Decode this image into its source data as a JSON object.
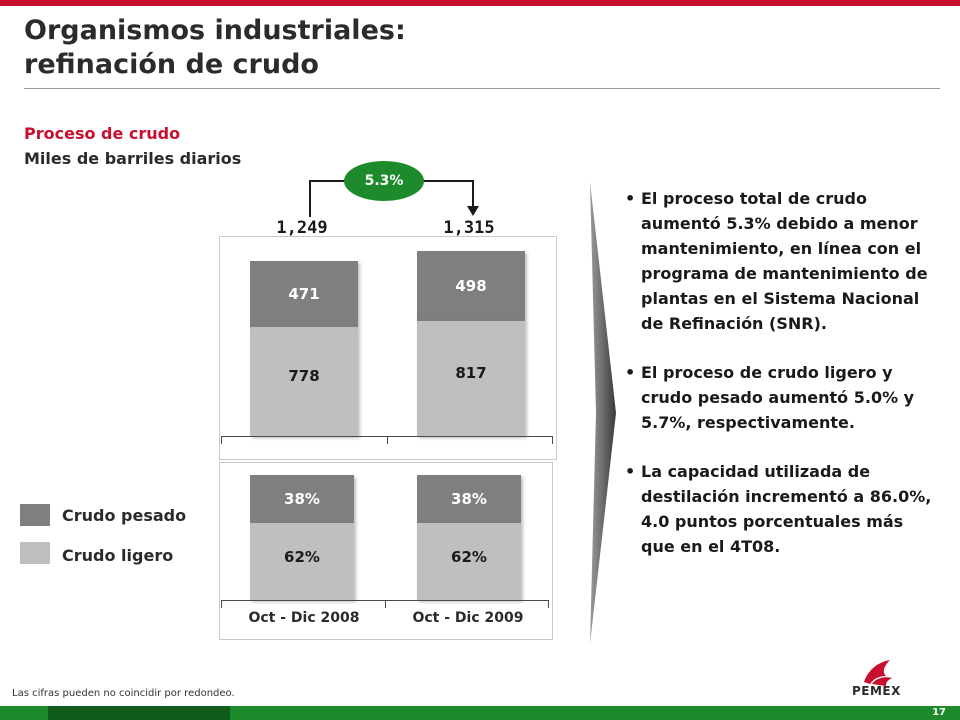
{
  "title_line1": "Organismos industriales:",
  "title_line2": "refinación de crudo",
  "subtitle": "Proceso de crudo",
  "units": "Miles de barriles diarios",
  "growth": "5.3%",
  "colors": {
    "pesado": "#7f7f7f",
    "ligero": "#bfbfbf",
    "accent_red": "#c8102e",
    "accent_green": "#1d8a2c"
  },
  "chart_data": [
    {
      "type": "bar",
      "stacked": true,
      "categories": [
        "Oct - Dic 2008",
        "Oct - Dic 2009"
      ],
      "series": [
        {
          "name": "Crudo ligero",
          "values": [
            778,
            817
          ]
        },
        {
          "name": "Crudo pesado",
          "values": [
            471,
            498
          ]
        }
      ],
      "totals": [
        "1,249",
        "1,315"
      ],
      "value_labels": {
        "ligero": [
          "778",
          "817"
        ],
        "pesado": [
          "471",
          "498"
        ]
      },
      "annotation": "5.3%"
    },
    {
      "type": "bar",
      "stacked": true,
      "categories": [
        "Oct - Dic 2008",
        "Oct - Dic 2009"
      ],
      "series": [
        {
          "name": "Crudo ligero",
          "values": [
            62,
            62
          ]
        },
        {
          "name": "Crudo pesado",
          "values": [
            38,
            38
          ]
        }
      ],
      "value_labels": {
        "ligero": [
          "62%",
          "62%"
        ],
        "pesado": [
          "38%",
          "38%"
        ]
      }
    }
  ],
  "legend": [
    {
      "label": "Crudo pesado",
      "icon": "dark-gray-square"
    },
    {
      "label": "Crudo ligero",
      "icon": "light-gray-square"
    }
  ],
  "bullets": [
    "El proceso total de crudo aumentó 5.3% debido a menor mantenimiento, en línea con el programa de mantenimiento de plantas en el Sistema Nacional de Refinación (SNR).",
    "El proceso de crudo ligero y crudo pesado aumentó 5.0% y 5.7%, respectivamente.",
    "La capacidad utilizada de destilación incrementó a 86.0%, 4.0 puntos porcentuales más que en el 4T08."
  ],
  "footnote": "Las cifras pueden no coincidir por redondeo.",
  "page_number": "17",
  "logo_text": "PEMEX"
}
